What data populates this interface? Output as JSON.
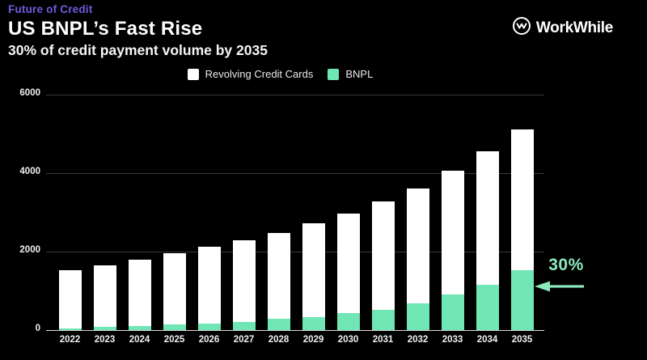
{
  "header": {
    "eyebrow": "Future of Credit",
    "title": "US BNPL’s Fast Rise",
    "subtitle": "30% of credit payment volume by 2035"
  },
  "logo": {
    "name": "WorkWhile",
    "icon": "circle-w-monogram"
  },
  "legend": {
    "items": [
      {
        "label": "Revolving Credit Cards",
        "color": "#ffffff"
      },
      {
        "label": "BNPL",
        "color": "#6fe6b4"
      }
    ]
  },
  "annotation": {
    "text": "30%",
    "icon": "left-arrow",
    "color": "#8de9be",
    "points_to": "2035 BNPL segment"
  },
  "colors": {
    "background": "#000000",
    "eyebrow": "#6e5ce0",
    "bar_revolving": "#ffffff",
    "bar_bnpl": "#6fe6b4",
    "gridline": "#3a3a3a",
    "axis_line": "#d8d8d8",
    "tick_label": "#f2f2f2"
  },
  "chart_data": {
    "type": "bar",
    "stacked": true,
    "title": "US BNPL’s Fast Rise",
    "subtitle": "30% of credit payment volume by 2035",
    "categories": [
      "2022",
      "2023",
      "2024",
      "2025",
      "2026",
      "2027",
      "2028",
      "2029",
      "2030",
      "2031",
      "2032",
      "2033",
      "2034",
      "2035"
    ],
    "series": [
      {
        "name": "BNPL",
        "color": "#6fe6b4",
        "values": [
          50,
          85,
          110,
          135,
          160,
          215,
          280,
          335,
          430,
          520,
          690,
          900,
          1160,
          1530
        ]
      },
      {
        "name": "Revolving Credit Cards",
        "color": "#ffffff",
        "values": [
          1480,
          1555,
          1690,
          1815,
          1970,
          2075,
          2200,
          2395,
          2540,
          2760,
          2910,
          3160,
          3390,
          3590
        ]
      }
    ],
    "totals": [
      1530,
      1640,
      1800,
      1950,
      2130,
      2290,
      2480,
      2730,
      2970,
      3280,
      3600,
      4060,
      4550,
      5120
    ],
    "xlabel": "",
    "ylabel": "",
    "ylim": [
      0,
      6000
    ],
    "yticks": [
      0,
      2000,
      4000,
      6000
    ],
    "grid": true,
    "legend_position": "top",
    "bnpl_share_2035": "30%"
  }
}
